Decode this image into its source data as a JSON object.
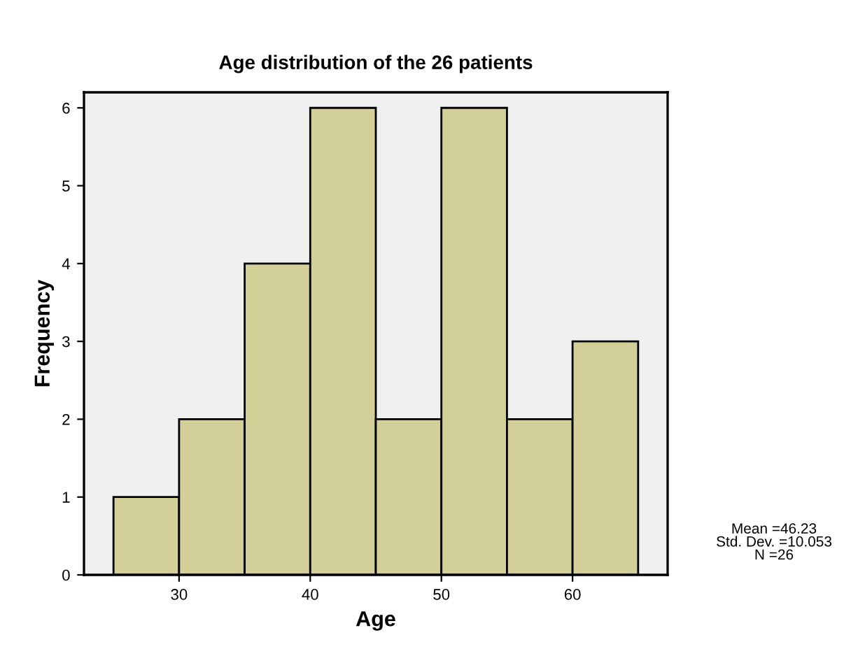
{
  "chart_data": {
    "type": "histogram",
    "title": "Age distribution of the 26 patients",
    "xlabel": "Age",
    "ylabel": "Frequency",
    "bins": [
      25,
      30,
      35,
      40,
      45,
      50,
      55,
      60,
      65
    ],
    "values": [
      1,
      2,
      4,
      6,
      2,
      6,
      2,
      3
    ],
    "color": "#d3cf98",
    "xlim": [
      22.75,
      67.25
    ],
    "xticks": [
      30,
      40,
      50,
      60
    ],
    "ylim": [
      0,
      6.2
    ],
    "yticks": [
      0,
      1,
      2,
      3,
      4,
      5,
      6
    ],
    "grid": false,
    "annotations": [
      "Mean =46.23\nStd. Dev. =10.053\nN =26"
    ]
  }
}
